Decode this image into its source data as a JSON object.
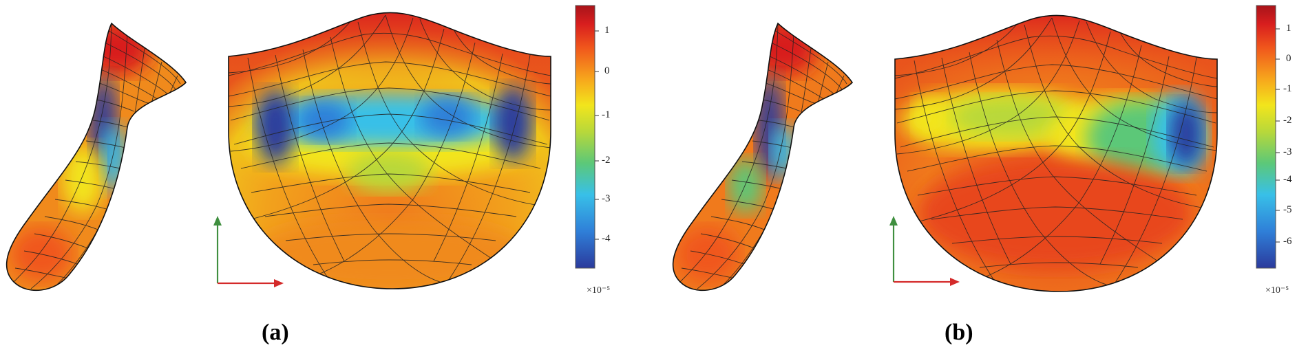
{
  "figure": {
    "panels": [
      {
        "id": "a",
        "label": "(a)",
        "colorbar": {
          "ticks": [
            "1",
            "0",
            "-1",
            "-2",
            "-3",
            "-4"
          ],
          "exponent": "×10⁻⁵"
        },
        "axes_colors": {
          "vertical": "#3f8f3f",
          "horizontal": "#d42a2a"
        }
      },
      {
        "id": "b",
        "label": "(b)",
        "colorbar": {
          "ticks": [
            "1",
            "0",
            "-1",
            "-2",
            "-3",
            "-4",
            "-5",
            "-6"
          ],
          "exponent": "×10⁻⁵"
        },
        "axes_colors": {
          "vertical": "#3f8f3f",
          "horizontal": "#d42a2a"
        }
      }
    ],
    "colormap": [
      "#2b3a9c",
      "#2f7fd8",
      "#38c0e8",
      "#5cc878",
      "#b8d83a",
      "#f2e51c",
      "#f7a61c",
      "#f0561c",
      "#d81e1e",
      "#a8141a"
    ]
  }
}
